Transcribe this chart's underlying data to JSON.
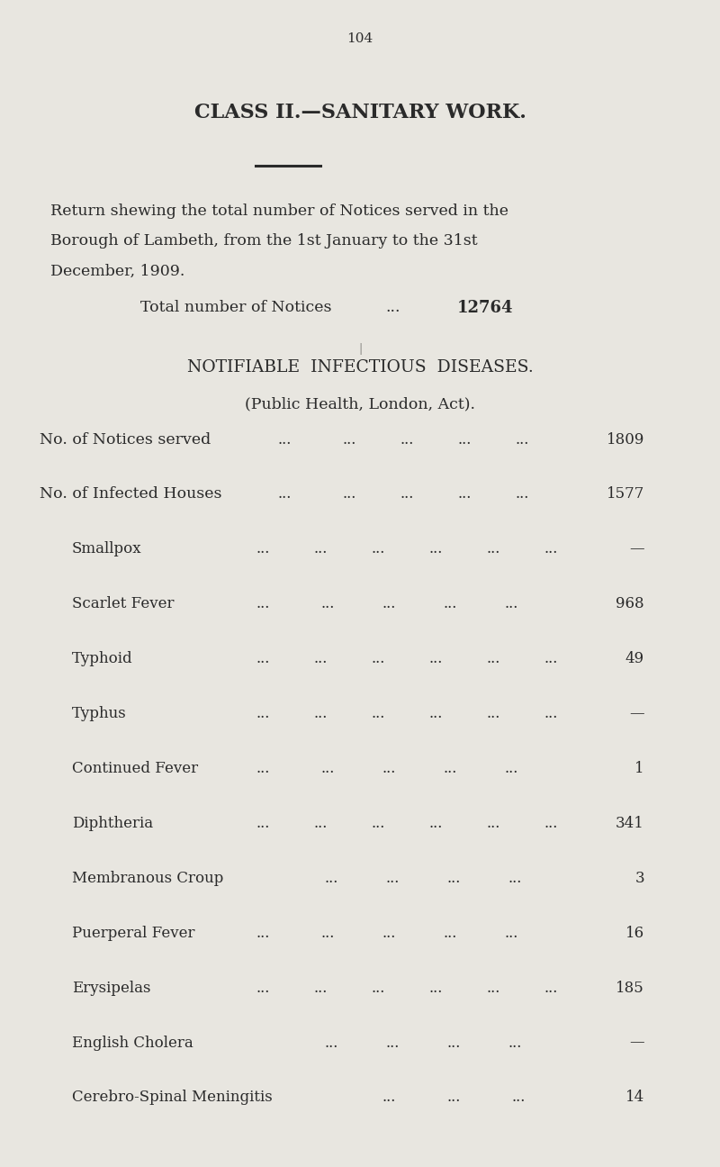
{
  "page_number": "104",
  "background_color": "#e8e6e0",
  "text_color": "#2a2a2a",
  "title": "CLASS II.—SANITARY WORK.",
  "return_text_line1": "Return shewing the total number of Notices served in the",
  "return_text_line2": "Borough of Lambeth, from the 1st January to the 31st",
  "return_text_line3": "December, 1909.",
  "total_notices_label": "Total number of Notices",
  "total_notices_value": "12764",
  "section_title": "NOTIFIABLE  INFECTIOUS  DISEASES.",
  "section_subtitle": "(Public Health, London, Act).",
  "rows": [
    {
      "label": "No. of Notices served",
      "value": "1809",
      "indent": 0,
      "ndots": 5
    },
    {
      "label": "No. of Infected Houses",
      "value": "1577",
      "indent": 0,
      "ndots": 5
    },
    {
      "label": "Smallpox",
      "value": "—",
      "indent": 1,
      "ndots": 6
    },
    {
      "label": "Scarlet Fever",
      "value": "968",
      "indent": 1,
      "ndots": 5
    },
    {
      "label": "Typhoid",
      "value": "49",
      "indent": 1,
      "ndots": 6
    },
    {
      "label": "Typhus",
      "value": "—",
      "indent": 1,
      "ndots": 6
    },
    {
      "label": "Continued Fever",
      "value": "1",
      "indent": 1,
      "ndots": 5
    },
    {
      "label": "Diphtheria",
      "value": "341",
      "indent": 1,
      "ndots": 6
    },
    {
      "label": "Membranous Croup",
      "value": "3",
      "indent": 1,
      "ndots": 4
    },
    {
      "label": "Puerperal Fever",
      "value": "16",
      "indent": 1,
      "ndots": 5
    },
    {
      "label": "Erysipelas",
      "value": "185",
      "indent": 1,
      "ndots": 6
    },
    {
      "label": "English Cholera",
      "value": "—",
      "indent": 1,
      "ndots": 4
    },
    {
      "label": "Cerebro-Spinal Meningitis",
      "value": "14",
      "indent": 1,
      "ndots": 3
    }
  ]
}
